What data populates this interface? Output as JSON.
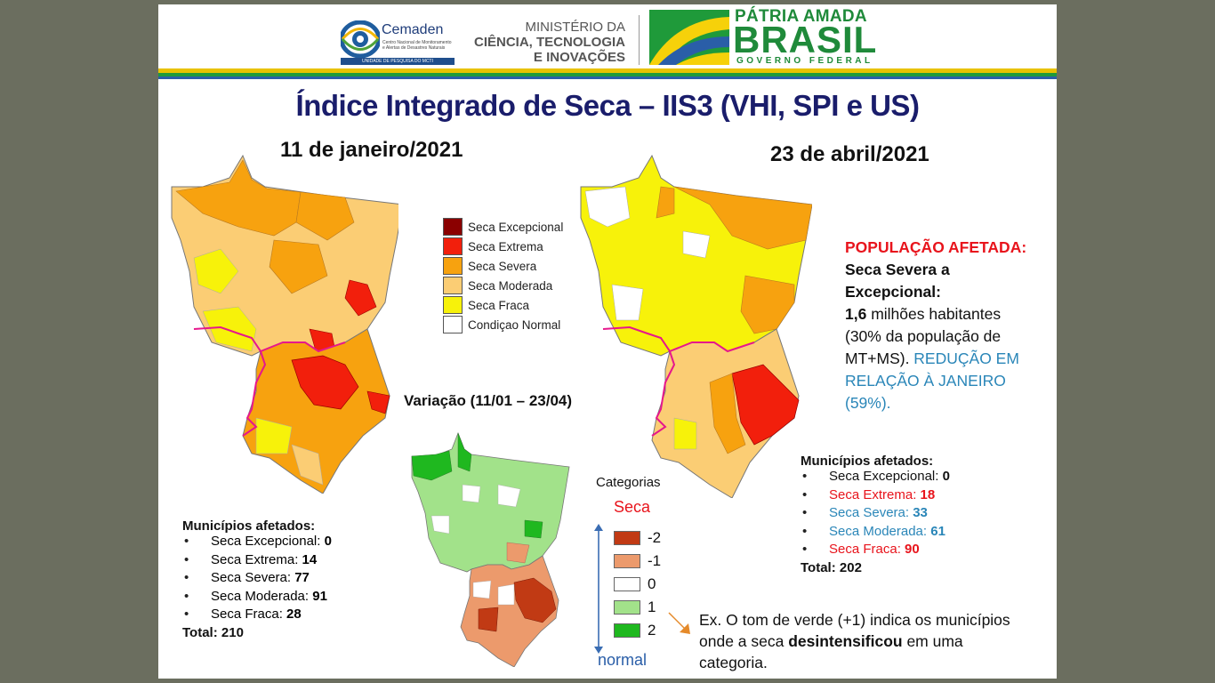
{
  "header": {
    "cemaden": {
      "name": "Cemaden",
      "subtitle_1": "Centro Nacional de Monitoramento",
      "subtitle_2": "e Alertas de Desastres Naturais",
      "tagline": "UNIDADE DE PESQUISA DO MCTI"
    },
    "ministerio": {
      "line1": "MINISTÉRIO DA",
      "line2": "CIÊNCIA, TECNOLOGIA",
      "line3": "E INOVAÇÕES"
    },
    "governo": {
      "line1": "PÁTRIA AMADA",
      "line2": "BRASIL",
      "line3": "GOVERNO FEDERAL"
    }
  },
  "title": "Índice Integrado de Seca – IIS3 (VHI, SPI e US)",
  "map_left": {
    "date": "11 de janeiro/2021"
  },
  "map_right": {
    "date": "23 de abril/2021"
  },
  "legend": {
    "items": [
      {
        "label": "Seca Excepcional",
        "color": "#8b0000"
      },
      {
        "label": "Seca Extrema",
        "color": "#f21f0c"
      },
      {
        "label": "Seca Severa",
        "color": "#f7a20f"
      },
      {
        "label": "Seca Moderada",
        "color": "#fbcd74"
      },
      {
        "label": "Seca Fraca",
        "color": "#f7f20a"
      },
      {
        "label": "Condiçao Normal",
        "color": "#ffffff"
      }
    ]
  },
  "variation": {
    "title": "Variação (11/01 – 23/04)",
    "categories_label": "Categorias",
    "seca_label": "Seca",
    "normal_label": "normal",
    "items": [
      {
        "label": "-2",
        "color": "#c13a14"
      },
      {
        "label": "-1",
        "color": "#ec9a6c"
      },
      {
        "label": "0",
        "color": "#ffffff"
      },
      {
        "label": "1",
        "color": "#a2e28a"
      },
      {
        "label": "2",
        "color": "#1fb81f"
      }
    ],
    "note_1": "Ex. O tom de verde (+1) indica os municípios",
    "note_2a": "onde a seca ",
    "note_2b": "desintensificou",
    "note_2c": " em uma",
    "note_3": "categoria."
  },
  "stats_left": {
    "title": "Municípios afetados:",
    "items": [
      {
        "label": "Seca Excepcional: ",
        "value": "0"
      },
      {
        "label": "Seca Extrema: ",
        "value": "14"
      },
      {
        "label": "Seca Severa: ",
        "value": "77"
      },
      {
        "label": "Seca Moderada: ",
        "value": "91"
      },
      {
        "label": "Seca Fraca: ",
        "value": "28"
      }
    ],
    "total": "Total: 210"
  },
  "stats_right": {
    "title": "Municípios afetados:",
    "items": [
      {
        "label": "Seca Excepcional: ",
        "value": "0",
        "color": "#111111"
      },
      {
        "label": "Seca Extrema: ",
        "value": "18",
        "color": "#e8141c"
      },
      {
        "label": "Seca Severa: ",
        "value": "33",
        "color": "#2a86b8"
      },
      {
        "label": "Seca Moderada: ",
        "value": "61",
        "color": "#2a86b8"
      },
      {
        "label": "Seca Fraca: ",
        "value": "90",
        "color": "#e8141c"
      }
    ],
    "total": "Total: 202"
  },
  "population": {
    "heading": "POPULAÇÃO AFETADA:",
    "line1": "Seca Severa a",
    "line2": "Excepcional:",
    "value": "1,6",
    "line3_rest": " milhões habitantes",
    "line4": "(30% da população de",
    "line5": "MT+MS). ",
    "reduction_1": "REDUÇÃO EM",
    "reduction_2": "RELAÇÃO À JANEIRO",
    "reduction_3": "(59%)."
  },
  "colors": {
    "title": "#1a1d6b",
    "red": "#e8141c",
    "blue": "#2a86b8",
    "arrow": "#e58a2a",
    "border": "#e6178c"
  }
}
